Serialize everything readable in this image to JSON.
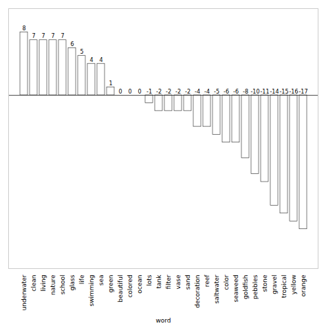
{
  "chart_data": {
    "type": "bar",
    "xlabel": "word",
    "categories": [
      "underwater",
      "clean",
      "living",
      "nature",
      "school",
      "glass",
      "life",
      "swimming",
      "sea",
      "green",
      "beautiful",
      "colored",
      "ocean",
      "lots",
      "tank",
      "filter",
      "vase",
      "sand",
      "decoration",
      "reef",
      "saltwater",
      "color",
      "seaweed",
      "goldfish",
      "pebbles",
      "stone",
      "gravel",
      "tropical",
      "yellow",
      "orange"
    ],
    "values": [
      8,
      7,
      7,
      7,
      7,
      6,
      5,
      4,
      4,
      1,
      0,
      0,
      0,
      -1,
      -2,
      -2,
      -2,
      -2,
      -4,
      -4,
      -5,
      -6,
      -6,
      -8,
      -10,
      -11,
      -14,
      -15,
      -16,
      -17
    ],
    "color": "#ffffff",
    "ylim": [
      -22,
      11
    ],
    "data_labels": true,
    "tick_labels": "x"
  }
}
